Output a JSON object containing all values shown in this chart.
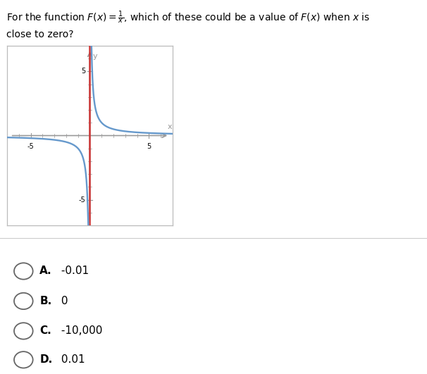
{
  "xlim": [
    -7,
    7
  ],
  "ylim": [
    -7,
    7
  ],
  "xtick_labels": [
    -5,
    5
  ],
  "ytick_labels": [
    -5,
    5
  ],
  "curve_color": "#6699cc",
  "vline_color": "#cc3333",
  "axis_color": "#999999",
  "background_color": "#ffffff",
  "graph_bg": "#ffffff",
  "graph_border": "#bbbbbb",
  "choices": [
    {
      "label": "A.",
      "text": " -0.01"
    },
    {
      "label": "B.",
      "text": " 0"
    },
    {
      "label": "C.",
      "text": " -10,000"
    },
    {
      "label": "D.",
      "text": " 0.01"
    }
  ],
  "fig_width": 6.06,
  "fig_height": 5.31
}
